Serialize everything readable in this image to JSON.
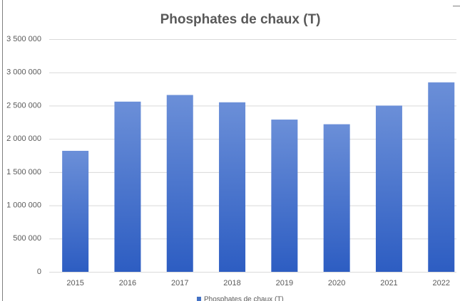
{
  "chart_data": {
    "type": "bar",
    "title": "Phosphates de chaux (T)",
    "categories": [
      "2015",
      "2016",
      "2017",
      "2018",
      "2019",
      "2020",
      "2021",
      "2022"
    ],
    "series": [
      {
        "name": "Phosphates de chaux (T)",
        "color": "#4472c4",
        "values": [
          1820000,
          2560000,
          2660000,
          2550000,
          2290000,
          2220000,
          2500000,
          2850000
        ]
      }
    ],
    "ylim": [
      0,
      3500000
    ],
    "yticks": [
      0,
      {
        "value": 500000,
        "label": "500 000"
      },
      {
        "value": 1000000,
        "label": "1 000 000"
      },
      {
        "value": 1500000,
        "label": "1 500 000"
      },
      {
        "value": 2000000,
        "label": "2 000 000"
      },
      {
        "value": 2500000,
        "label": "2 500 000"
      },
      {
        "value": 3000000,
        "label": "3 000 000"
      },
      {
        "value": 3500000,
        "label": "3 500 000"
      }
    ],
    "grid": true,
    "legend": "bottom"
  }
}
